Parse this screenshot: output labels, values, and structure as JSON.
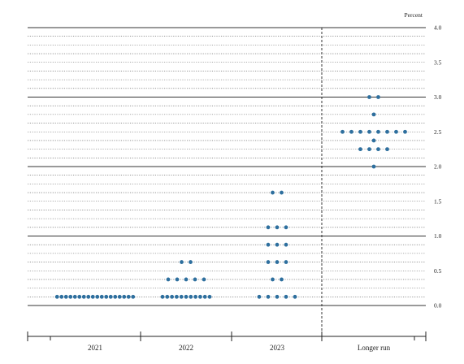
{
  "chart_data": {
    "type": "scatter",
    "title": "",
    "xlabel": "",
    "ylabel": "Percent",
    "ylim": [
      0,
      4
    ],
    "yticks": [
      "0.0",
      "0.5",
      "1.0",
      "1.5",
      "2.0",
      "2.5",
      "3.0",
      "3.5",
      "4.0"
    ],
    "categories": [
      "2021",
      "2022",
      "2023",
      "Longer run"
    ],
    "dot_color": "#2e6f9e",
    "grid": "dotted horizontal lines every 0.125, solid lines at whole numbers",
    "divider": "dashed vertical line before Longer run",
    "series": [
      {
        "category": "2021",
        "rows": [
          {
            "y": 0.125,
            "count": 18
          }
        ]
      },
      {
        "category": "2022",
        "rows": [
          {
            "y": 0.125,
            "count": 11
          },
          {
            "y": 0.375,
            "count": 5
          },
          {
            "y": 0.625,
            "count": 2
          }
        ]
      },
      {
        "category": "2023",
        "rows": [
          {
            "y": 0.125,
            "count": 5
          },
          {
            "y": 0.375,
            "count": 2
          },
          {
            "y": 0.625,
            "count": 3
          },
          {
            "y": 0.875,
            "count": 3
          },
          {
            "y": 1.125,
            "count": 3
          },
          {
            "y": 1.625,
            "count": 2
          }
        ]
      },
      {
        "category": "Longer run",
        "rows": [
          {
            "y": 2.0,
            "count": 1
          },
          {
            "y": 2.25,
            "count": 4
          },
          {
            "y": 2.375,
            "count": 1
          },
          {
            "y": 2.5,
            "count": 8
          },
          {
            "y": 2.75,
            "count": 1
          },
          {
            "y": 3.0,
            "count": 2
          }
        ]
      }
    ]
  }
}
